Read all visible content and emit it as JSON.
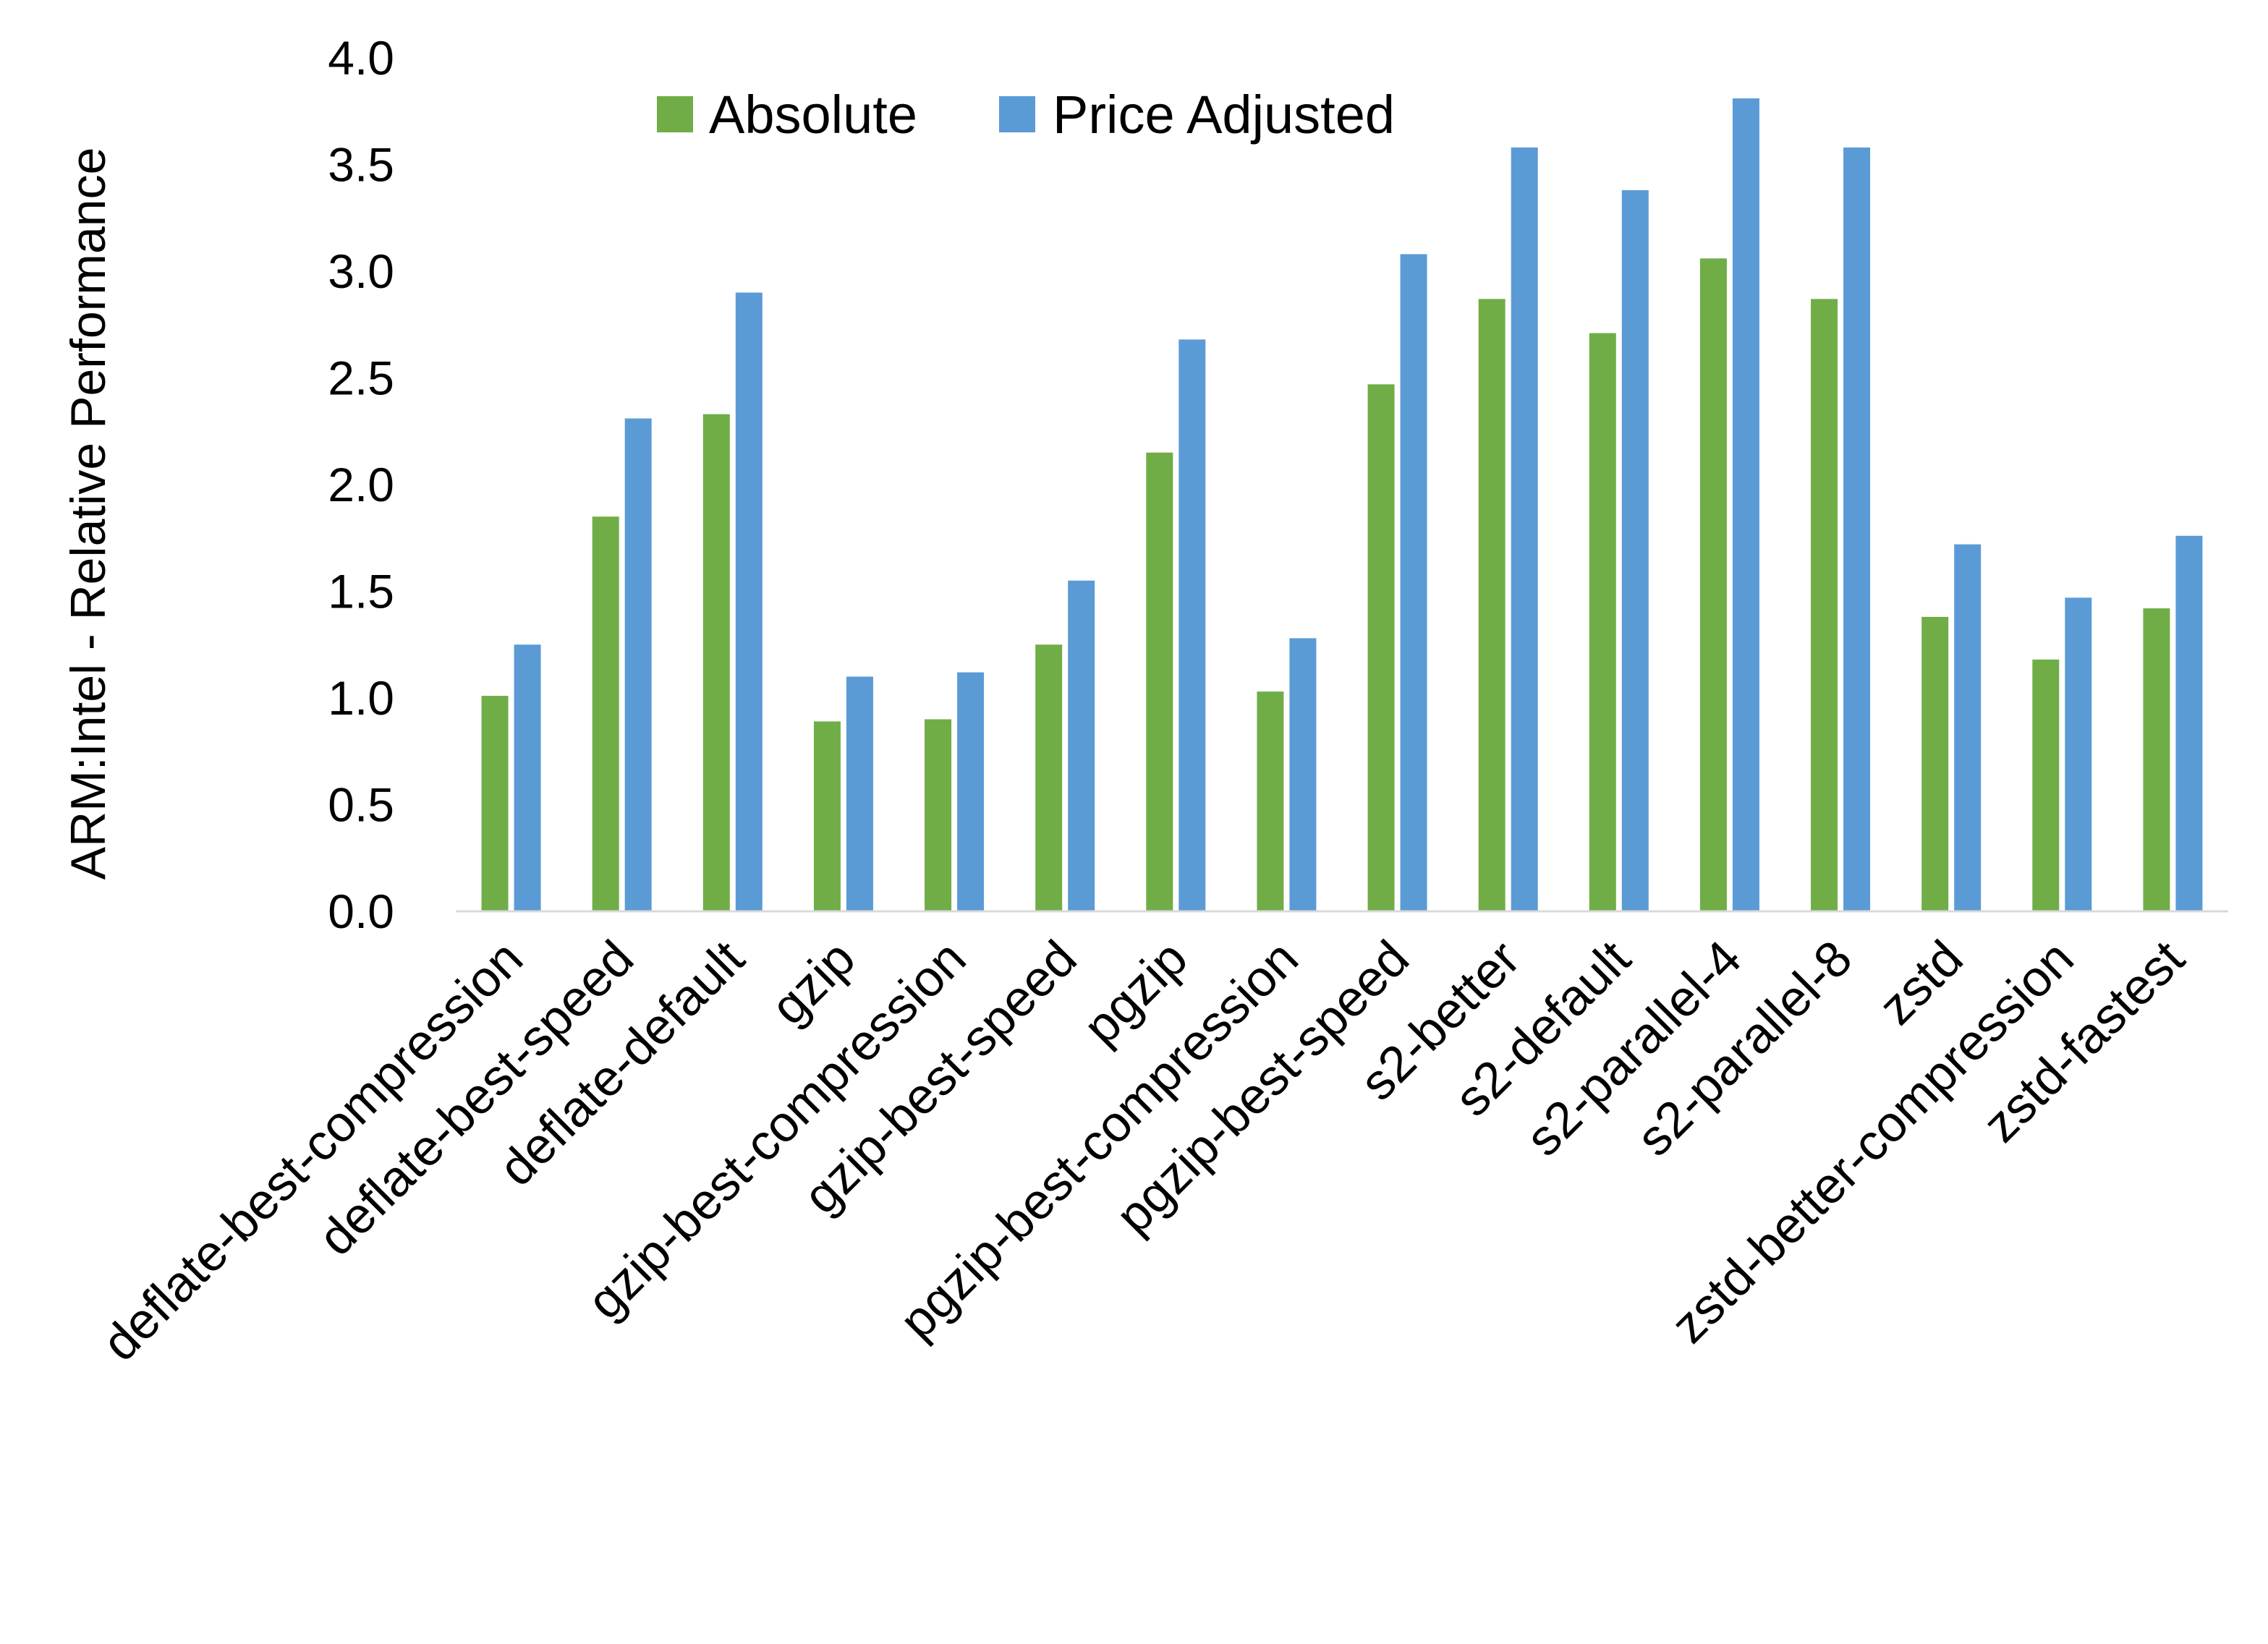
{
  "chart_data": {
    "type": "bar",
    "title": "",
    "xlabel": "",
    "ylabel": "ARM:Intel - Relative Performance",
    "ylim": [
      0,
      4.0
    ],
    "yticks": [
      "0.0",
      "0.5",
      "1.0",
      "1.5",
      "2.0",
      "2.5",
      "3.0",
      "3.5",
      "4.0"
    ],
    "grid": false,
    "legend_position": "top",
    "categories": [
      "deflate-best-compression",
      "deflate-best-speed",
      "deflate-default",
      "gzip",
      "gzip-best-compression",
      "gzip-best-speed",
      "pgzip",
      "pgzip-best-compression",
      "pgzip-best-speed",
      "s2-better",
      "s2-default",
      "s2-parallel-4",
      "s2-parallel-8",
      "zstd",
      "zstd-better-compression",
      "zstd-fastest"
    ],
    "series": [
      {
        "name": "Absolute",
        "color": "#70AD47",
        "values": [
          1.01,
          1.85,
          2.33,
          0.89,
          0.9,
          1.25,
          2.15,
          1.03,
          2.47,
          2.87,
          2.71,
          3.06,
          2.87,
          1.38,
          1.18,
          1.42
        ]
      },
      {
        "name": "Price Adjusted",
        "color": "#5B9BD5",
        "values": [
          1.25,
          2.31,
          2.9,
          1.1,
          1.12,
          1.55,
          2.68,
          1.28,
          3.08,
          3.58,
          3.38,
          3.81,
          3.58,
          1.72,
          1.47,
          1.76
        ]
      }
    ]
  }
}
